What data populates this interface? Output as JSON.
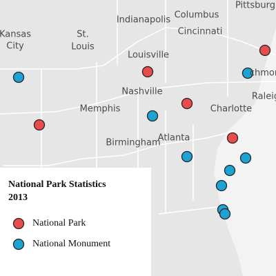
{
  "map": {
    "labels": [
      "Pittsburg",
      "Indianapolis",
      "Columbus",
      "Cincinnati",
      "Kansas",
      "City",
      "St.",
      "Louis",
      "Louisville",
      "chmon",
      "Raleig",
      "Nashville",
      "Memphis",
      "Charlotte",
      "Atlanta",
      "Birmingham"
    ],
    "legend": {
      "title": [
        "National Park Statistics",
        "2013"
      ],
      "items": [
        {
          "label": "National Park",
          "color": "#e84c4c"
        },
        {
          "label": "National Monument",
          "color": "#1ea2d4"
        }
      ]
    }
  }
}
